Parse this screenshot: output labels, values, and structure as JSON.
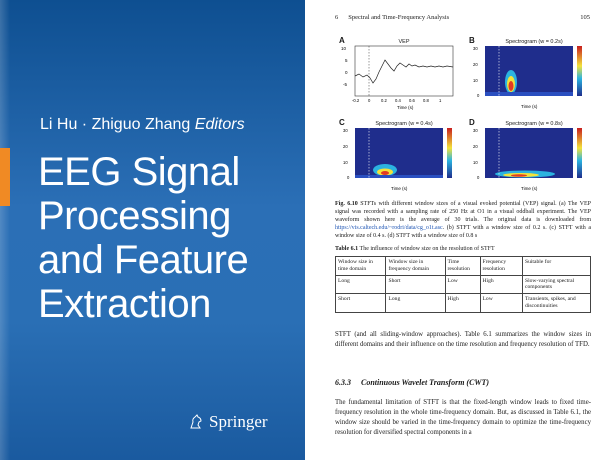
{
  "cover": {
    "editors": "Li Hu · Zhiguo Zhang",
    "editors_suffix": "Editors",
    "title_lines": [
      "EEG Signal",
      "Processing",
      "and Feature",
      "Extraction"
    ],
    "publisher": "Springer",
    "colors": {
      "background": "#2b6fb6",
      "accent_bar": "#f08a24",
      "text": "#ffffff"
    }
  },
  "page": {
    "running_head": {
      "chapter": "6",
      "title": "Spectral and Time-Frequency Analysis",
      "page_number": "105"
    },
    "figure": {
      "panels": [
        {
          "label": "A",
          "title": "VEP",
          "xlabel": "Time (s)",
          "ylabel": "Amplitude (µV)",
          "yticks": [
            "10",
            "5",
            "0",
            "-5"
          ]
        },
        {
          "label": "B",
          "title": "Spectrogram (w = 0.2s)",
          "xlabel": "Time (s)",
          "ylabel": "Frequency (Hz)",
          "cbar_label": "Power (µV²/Hz)"
        },
        {
          "label": "C",
          "title": "Spectrogram (w = 0.4s)",
          "xlabel": "Time (s)",
          "ylabel": "Frequency (Hz)",
          "cbar_label": "Power (µV²/Hz)"
        },
        {
          "label": "D",
          "title": "Spectrogram (w = 0.8s)",
          "xlabel": "Time (s)",
          "ylabel": "Frequency (Hz)",
          "cbar_label": "Power (µV²/Hz)"
        }
      ],
      "xticks": [
        "-0.2",
        "0",
        "0.2",
        "0.4",
        "0.6",
        "0.8",
        "1"
      ],
      "fticks": [
        "30",
        "20",
        "10",
        "0"
      ],
      "caption_label": "Fig. 6.10",
      "caption_text": "STFTs with different window sizes of a visual evoked potential (VEP) signal. (a) The VEP signal was recorded with a sampling rate of 250 Hz at O1 in a visual oddball experiment. The VEP waveform shown here is the average of 30 trials. The original data is downloaded from",
      "caption_link": "https://vis.caltech.edu/~rodri/data/cg_o1t.asc",
      "caption_tail": ". (b) STFT with a window size of 0.2 s. (c) STFT with a window size of 0.4 s. (d) STFT with a window size of 0.8 s"
    },
    "table": {
      "caption_label": "Table 6.1",
      "caption_text": "The influence of window size on the resolution of STFT",
      "headers": [
        "Window size in time domain",
        "Window size in frequency domain",
        "Time resolution",
        "Frequency resolution",
        "Suitable for"
      ],
      "rows": [
        [
          "Long",
          "Short",
          "Low",
          "High",
          "Slow-varying spectral components"
        ],
        [
          "Short",
          "Long",
          "High",
          "Low",
          "Transients, spikes, and discontinuities"
        ]
      ]
    },
    "paragraph_1": "STFT (and all sliding-window approaches). Table 6.1 summarizes the window sizes in different domains and their influence on the time resolution and frequency resolution of TFD.",
    "section": {
      "number": "6.3.3",
      "title": "Continuous Wavelet Transform (CWT)"
    },
    "paragraph_2": "The fundamental limitation of STFT is that the fixed-length window leads to fixed time-frequency resolution in the whole time-frequency domain. But, as discussed in Table 6.1, the window size should be varied in the time-frequency domain to optimize the time-frequency resolution for diversified spectral components in a"
  }
}
